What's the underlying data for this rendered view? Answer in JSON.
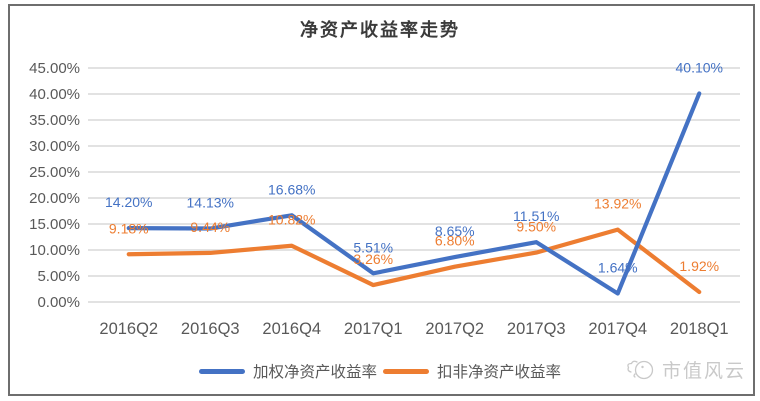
{
  "title": "净资产收益率走势",
  "chart_data": {
    "type": "line",
    "categories": [
      "2016Q2",
      "2016Q3",
      "2016Q4",
      "2017Q1",
      "2017Q2",
      "2017Q3",
      "2017Q4",
      "2018Q1"
    ],
    "series": [
      {
        "id": "weighted-roe",
        "name": "加权净资产收益率",
        "color": "#4472C4",
        "values": [
          14.2,
          14.13,
          16.68,
          5.51,
          8.65,
          11.51,
          1.64,
          40.1
        ],
        "data_labels": [
          "14.20%",
          "14.13%",
          "16.68%",
          "5.51%",
          "8.65%",
          "11.51%",
          "1.64%",
          "40.10%"
        ]
      },
      {
        "id": "deducted-roe",
        "name": "扣非净资产收益率",
        "color": "#ED7D31",
        "values": [
          9.18,
          9.44,
          10.82,
          3.26,
          6.8,
          9.5,
          13.92,
          1.92
        ],
        "data_labels": [
          "9.18%",
          "9.44%",
          "10.82%",
          "3.26%",
          "6.80%",
          "9.50%",
          "13.92%",
          "1.92%"
        ]
      }
    ],
    "ylim": [
      0,
      45
    ],
    "ytick_step": 5,
    "ytick_labels": [
      "0.00%",
      "5.00%",
      "10.00%",
      "15.00%",
      "20.00%",
      "25.00%",
      "30.00%",
      "35.00%",
      "40.00%",
      "45.00%"
    ],
    "xlabel": "",
    "ylabel": "",
    "grid": true,
    "legend_position": "bottom"
  },
  "colors": {
    "series_blue": "#4472C4",
    "series_orange": "#ED7D31",
    "gridline": "#D9D9D9",
    "axis_text": "#595959",
    "border": "#6e6e6e",
    "watermark": "#c9c9c9"
  },
  "watermark": {
    "text": "市值风云"
  }
}
